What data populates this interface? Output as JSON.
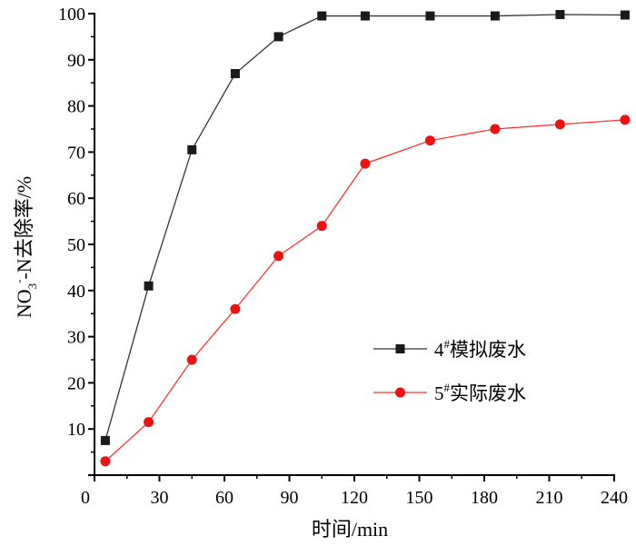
{
  "chart_data": {
    "type": "line",
    "xlabel": "时间/min",
    "ylabel_parts": {
      "pre": "NO",
      "sub": "3",
      "sup": "-",
      "post": "-N去除率/%"
    },
    "xlim": [
      0,
      240
    ],
    "ylim": [
      0,
      100
    ],
    "xticks": [
      0,
      30,
      60,
      90,
      120,
      150,
      180,
      210,
      240
    ],
    "yticks": [
      10,
      20,
      30,
      40,
      50,
      60,
      70,
      80,
      90,
      100
    ],
    "grid": false,
    "legend_position": "center-right",
    "series": [
      {
        "name_parts": {
          "pre": "4",
          "sup": "#",
          "post": "模拟废水"
        },
        "marker": "square",
        "color": "#333333",
        "markerColor": "#1a1a1a",
        "x": [
          5,
          25,
          45,
          65,
          85,
          105,
          125,
          155,
          185,
          215,
          245
        ],
        "y": [
          7.5,
          41,
          70.5,
          87,
          95,
          99.5,
          99.5,
          99.5,
          99.5,
          99.8,
          99.7
        ]
      },
      {
        "name_parts": {
          "pre": "5",
          "sup": "#",
          "post": "实际废水"
        },
        "marker": "circle",
        "color": "#ff3333",
        "markerColor": "#ee1111",
        "x": [
          5,
          25,
          45,
          65,
          85,
          105,
          125,
          155,
          185,
          215,
          245
        ],
        "y": [
          3,
          11.5,
          25,
          36,
          47.5,
          54,
          67.5,
          72.5,
          75,
          76,
          77
        ]
      }
    ]
  }
}
